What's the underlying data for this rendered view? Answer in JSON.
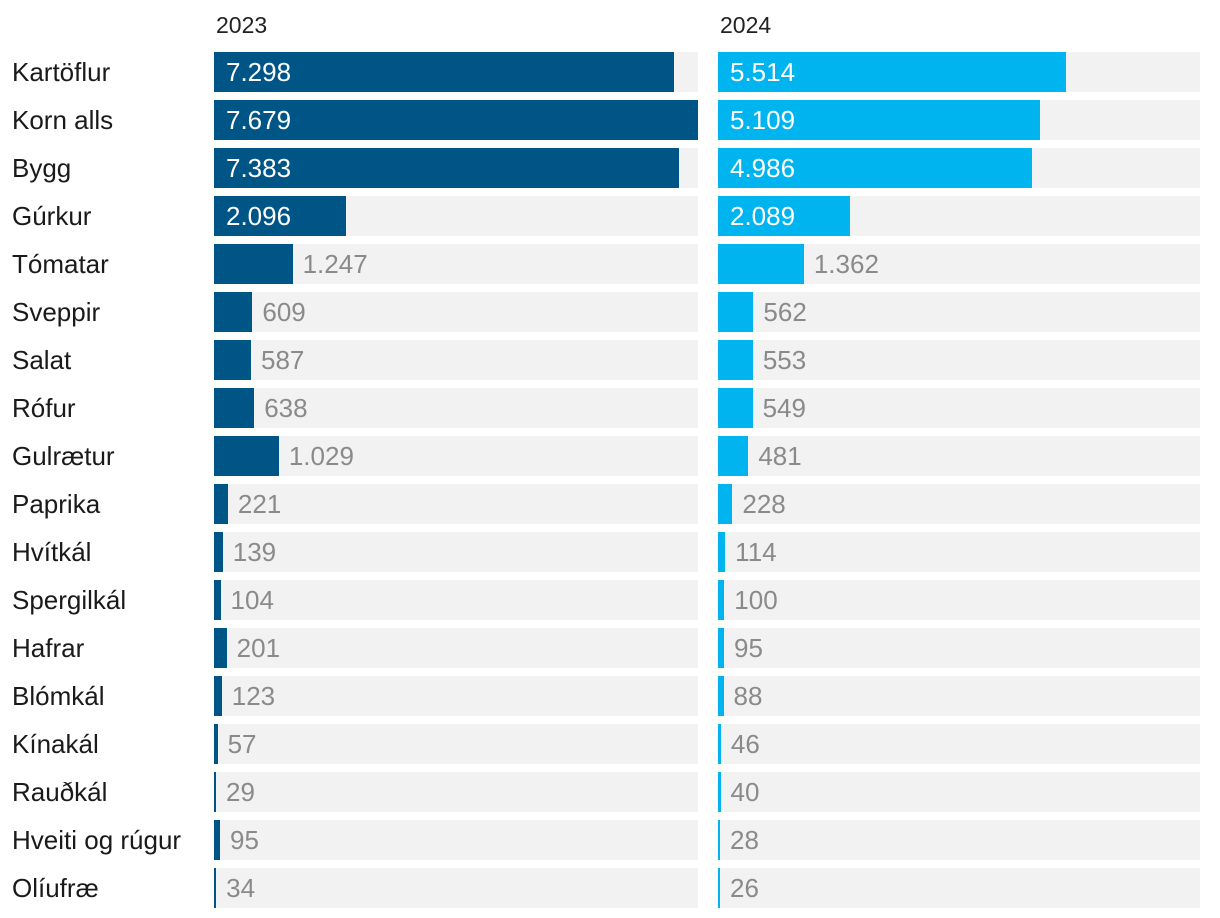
{
  "chart_data": {
    "type": "bar",
    "orientation": "horizontal",
    "layout": "small-multiples",
    "categories": [
      "Kartöflur",
      "Korn alls",
      "Bygg",
      "Gúrkur",
      "Tómatar",
      "Sveppir",
      "Salat",
      "Rófur",
      "Gulrætur",
      "Paprika",
      "Hvítkál",
      "Spergilkál",
      "Hafrar",
      "Blómkál",
      "Kínakál",
      "Rauðkál",
      "Hveiti og rúgur",
      "Olíufræ"
    ],
    "series": [
      {
        "name": "2023",
        "color": "#005587",
        "values": [
          7298,
          7679,
          7383,
          2096,
          1247,
          609,
          587,
          638,
          1029,
          221,
          139,
          104,
          201,
          123,
          57,
          29,
          95,
          34
        ],
        "labels": [
          "7.298",
          "7.679",
          "7.383",
          "2.096",
          "1.247",
          "609",
          "587",
          "638",
          "1.029",
          "221",
          "139",
          "104",
          "201",
          "123",
          "57",
          "29",
          "95",
          "34"
        ]
      },
      {
        "name": "2024",
        "color": "#00b4ef",
        "values": [
          5514,
          5109,
          4986,
          2089,
          1362,
          562,
          553,
          549,
          481,
          228,
          114,
          100,
          95,
          88,
          46,
          40,
          28,
          26
        ],
        "labels": [
          "5.514",
          "5.109",
          "4.986",
          "2.089",
          "1.362",
          "562",
          "553",
          "549",
          "481",
          "228",
          "114",
          "100",
          "95",
          "88",
          "46",
          "40",
          "28",
          "26"
        ]
      }
    ],
    "xlim": [
      0,
      7679
    ],
    "grid": false,
    "legend": "none",
    "track_color": "#f2f2f2"
  }
}
